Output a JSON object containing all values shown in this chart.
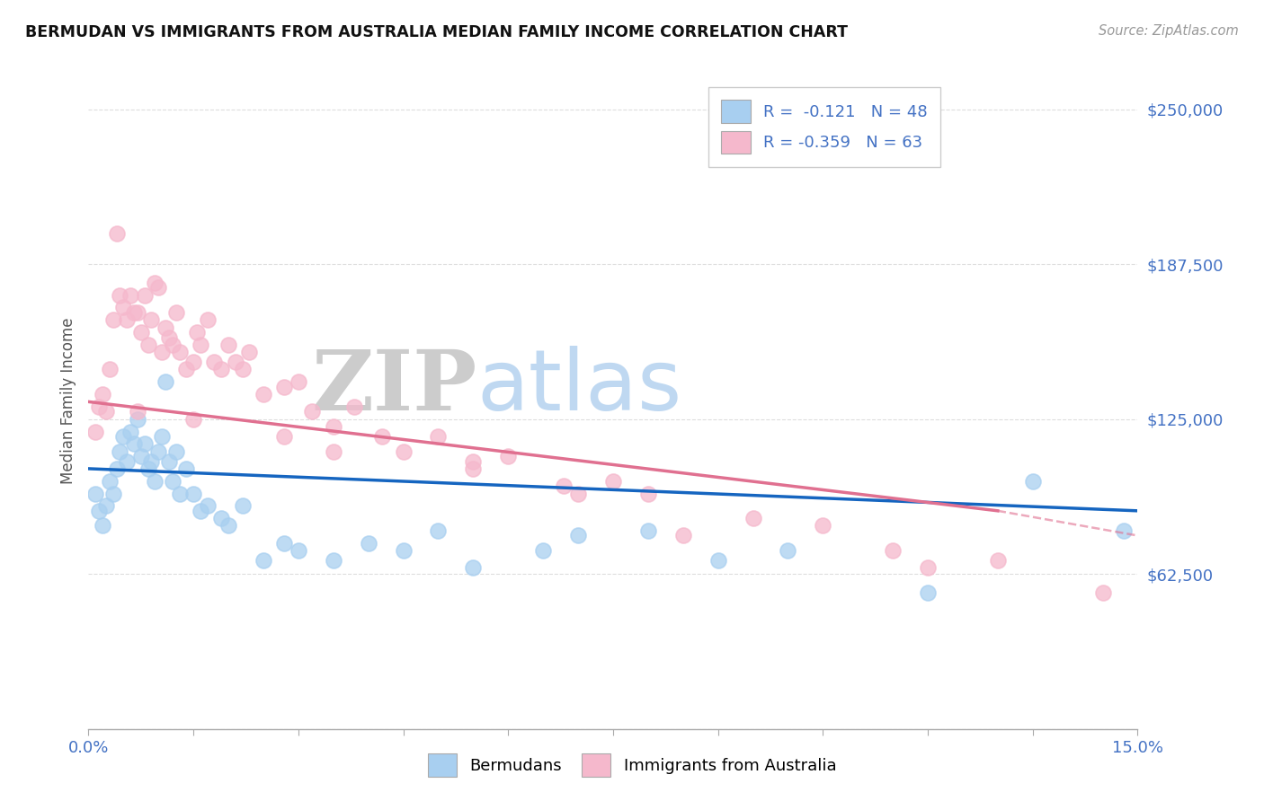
{
  "title": "BERMUDAN VS IMMIGRANTS FROM AUSTRALIA MEDIAN FAMILY INCOME CORRELATION CHART",
  "source": "Source: ZipAtlas.com",
  "ylabel": "Median Family Income",
  "yticks": [
    0,
    62500,
    125000,
    187500,
    250000
  ],
  "ytick_labels": [
    "",
    "$62,500",
    "$125,000",
    "$187,500",
    "$250,000"
  ],
  "xlim": [
    0.0,
    15.0
  ],
  "ylim": [
    0,
    265000
  ],
  "legend_r1": "R =  -0.121   N = 48",
  "legend_r2": "R = -0.359   N = 63",
  "blue_color": "#A8CFF0",
  "pink_color": "#F5B8CC",
  "blue_line_color": "#1565C0",
  "pink_line_color": "#E07090",
  "watermark_zip": "ZIP",
  "watermark_atlas": "atlas",
  "background_color": "#FFFFFF",
  "text_color": "#4472C4",
  "grid_color": "#DDDDDD",
  "blue_scatter_x": [
    0.1,
    0.15,
    0.2,
    0.25,
    0.3,
    0.35,
    0.4,
    0.45,
    0.5,
    0.55,
    0.6,
    0.65,
    0.7,
    0.75,
    0.8,
    0.85,
    0.9,
    0.95,
    1.0,
    1.05,
    1.1,
    1.15,
    1.2,
    1.25,
    1.3,
    1.4,
    1.5,
    1.6,
    1.7,
    1.9,
    2.0,
    2.2,
    2.5,
    2.8,
    3.0,
    3.5,
    4.0,
    4.5,
    5.0,
    5.5,
    6.5,
    7.0,
    8.0,
    9.0,
    10.0,
    12.0,
    13.5,
    14.8
  ],
  "blue_scatter_y": [
    95000,
    88000,
    82000,
    90000,
    100000,
    95000,
    105000,
    112000,
    118000,
    108000,
    120000,
    115000,
    125000,
    110000,
    115000,
    105000,
    108000,
    100000,
    112000,
    118000,
    140000,
    108000,
    100000,
    112000,
    95000,
    105000,
    95000,
    88000,
    90000,
    85000,
    82000,
    90000,
    68000,
    75000,
    72000,
    68000,
    75000,
    72000,
    80000,
    65000,
    72000,
    78000,
    80000,
    68000,
    72000,
    55000,
    100000,
    80000
  ],
  "pink_scatter_x": [
    0.1,
    0.15,
    0.2,
    0.25,
    0.3,
    0.35,
    0.4,
    0.45,
    0.5,
    0.55,
    0.6,
    0.65,
    0.7,
    0.75,
    0.8,
    0.85,
    0.9,
    0.95,
    1.0,
    1.05,
    1.1,
    1.15,
    1.2,
    1.25,
    1.3,
    1.4,
    1.5,
    1.55,
    1.6,
    1.7,
    1.8,
    1.9,
    2.0,
    2.1,
    2.2,
    2.3,
    2.5,
    2.8,
    3.0,
    3.2,
    3.5,
    3.8,
    4.2,
    4.5,
    5.0,
    5.5,
    6.0,
    6.8,
    7.5,
    8.0,
    9.5,
    10.5,
    11.5,
    12.0,
    13.0,
    14.5,
    0.7,
    1.5,
    2.8,
    3.5,
    5.5,
    7.0,
    8.5
  ],
  "pink_scatter_y": [
    120000,
    130000,
    135000,
    128000,
    145000,
    165000,
    200000,
    175000,
    170000,
    165000,
    175000,
    168000,
    168000,
    160000,
    175000,
    155000,
    165000,
    180000,
    178000,
    152000,
    162000,
    158000,
    155000,
    168000,
    152000,
    145000,
    148000,
    160000,
    155000,
    165000,
    148000,
    145000,
    155000,
    148000,
    145000,
    152000,
    135000,
    138000,
    140000,
    128000,
    122000,
    130000,
    118000,
    112000,
    118000,
    108000,
    110000,
    98000,
    100000,
    95000,
    85000,
    82000,
    72000,
    65000,
    68000,
    55000,
    128000,
    125000,
    118000,
    112000,
    105000,
    95000,
    78000
  ],
  "blue_line_x0": 0.0,
  "blue_line_y0": 105000,
  "blue_line_x1": 15.0,
  "blue_line_y1": 88000,
  "pink_line_x0": 0.0,
  "pink_line_y0": 132000,
  "pink_line_x1": 13.0,
  "pink_line_y1": 88000,
  "pink_dash_x0": 13.0,
  "pink_dash_y0": 88000,
  "pink_dash_x1": 15.0,
  "pink_dash_y1": 78000
}
